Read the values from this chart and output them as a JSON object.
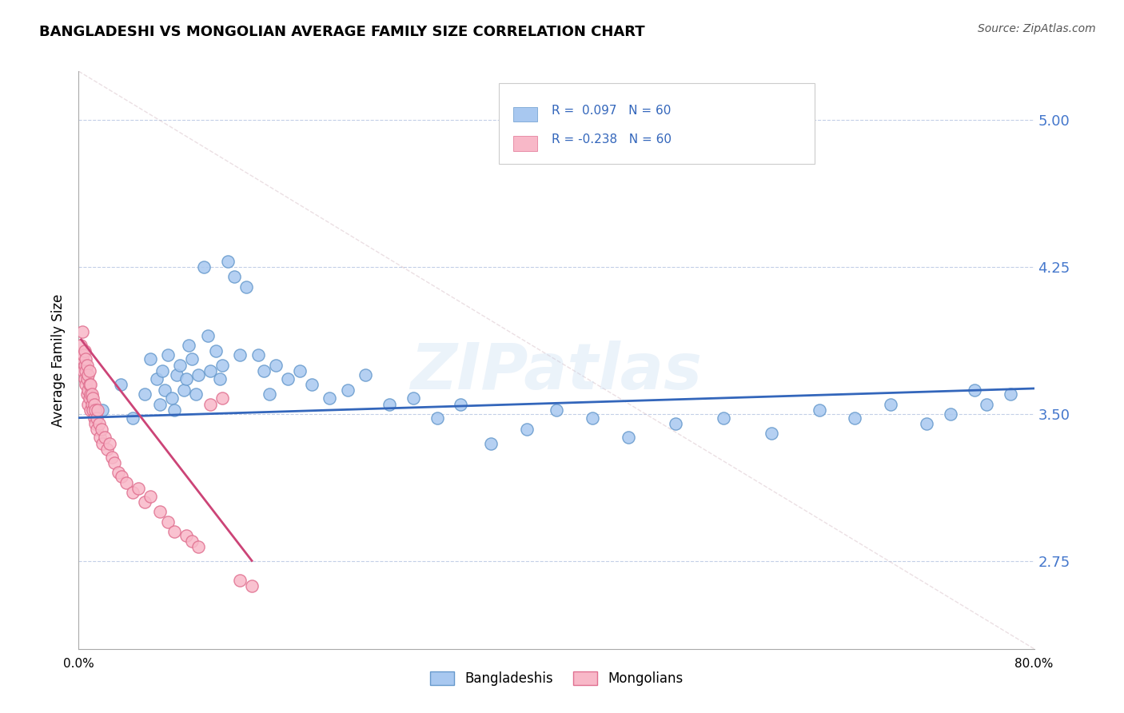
{
  "title": "BANGLADESHI VS MONGOLIAN AVERAGE FAMILY SIZE CORRELATION CHART",
  "source": "Source: ZipAtlas.com",
  "ylabel": "Average Family Size",
  "yticks": [
    2.75,
    3.5,
    4.25,
    5.0
  ],
  "xlim": [
    0.0,
    0.8
  ],
  "ylim": [
    2.3,
    5.25
  ],
  "legend_label1": "Bangladeshis",
  "legend_label2": "Mongolians",
  "color_bangladeshi_fill": "#A8C8F0",
  "color_bangladeshi_edge": "#6699CC",
  "color_mongolian_fill": "#F8B8C8",
  "color_mongolian_edge": "#E07090",
  "color_line_bangladeshi": "#3366BB",
  "color_line_mongolian": "#CC4477",
  "color_diag": "#D8C0C8",
  "watermark": "ZIPatlas",
  "bang_x": [
    0.02,
    0.035,
    0.045,
    0.055,
    0.06,
    0.065,
    0.068,
    0.07,
    0.072,
    0.075,
    0.078,
    0.08,
    0.082,
    0.085,
    0.088,
    0.09,
    0.092,
    0.095,
    0.098,
    0.1,
    0.105,
    0.108,
    0.11,
    0.115,
    0.118,
    0.12,
    0.125,
    0.13,
    0.135,
    0.14,
    0.15,
    0.155,
    0.16,
    0.165,
    0.175,
    0.185,
    0.195,
    0.21,
    0.225,
    0.24,
    0.26,
    0.28,
    0.3,
    0.32,
    0.345,
    0.375,
    0.4,
    0.43,
    0.46,
    0.5,
    0.54,
    0.58,
    0.62,
    0.65,
    0.68,
    0.71,
    0.73,
    0.75,
    0.76,
    0.78
  ],
  "bang_y": [
    3.52,
    3.65,
    3.48,
    3.6,
    3.78,
    3.68,
    3.55,
    3.72,
    3.62,
    3.8,
    3.58,
    3.52,
    3.7,
    3.75,
    3.62,
    3.68,
    3.85,
    3.78,
    3.6,
    3.7,
    4.25,
    3.9,
    3.72,
    3.82,
    3.68,
    3.75,
    4.28,
    4.2,
    3.8,
    4.15,
    3.8,
    3.72,
    3.6,
    3.75,
    3.68,
    3.72,
    3.65,
    3.58,
    3.62,
    3.7,
    3.55,
    3.58,
    3.48,
    3.55,
    3.35,
    3.42,
    3.52,
    3.48,
    3.38,
    3.45,
    3.48,
    3.4,
    3.52,
    3.48,
    3.55,
    3.45,
    3.5,
    3.62,
    3.55,
    3.6
  ],
  "mong_x": [
    0.002,
    0.003,
    0.003,
    0.004,
    0.004,
    0.005,
    0.005,
    0.005,
    0.006,
    0.006,
    0.006,
    0.007,
    0.007,
    0.007,
    0.008,
    0.008,
    0.008,
    0.009,
    0.009,
    0.009,
    0.01,
    0.01,
    0.01,
    0.011,
    0.011,
    0.012,
    0.012,
    0.013,
    0.013,
    0.014,
    0.014,
    0.015,
    0.015,
    0.016,
    0.017,
    0.018,
    0.019,
    0.02,
    0.022,
    0.024,
    0.026,
    0.028,
    0.03,
    0.033,
    0.036,
    0.04,
    0.045,
    0.05,
    0.055,
    0.06,
    0.068,
    0.075,
    0.08,
    0.09,
    0.095,
    0.1,
    0.11,
    0.12,
    0.135,
    0.145
  ],
  "mong_y": [
    3.85,
    3.78,
    3.92,
    3.72,
    3.8,
    3.68,
    3.75,
    3.82,
    3.65,
    3.72,
    3.78,
    3.6,
    3.68,
    3.75,
    3.62,
    3.7,
    3.55,
    3.58,
    3.65,
    3.72,
    3.52,
    3.6,
    3.65,
    3.55,
    3.6,
    3.52,
    3.58,
    3.48,
    3.55,
    3.45,
    3.52,
    3.42,
    3.48,
    3.52,
    3.45,
    3.38,
    3.42,
    3.35,
    3.38,
    3.32,
    3.35,
    3.28,
    3.25,
    3.2,
    3.18,
    3.15,
    3.1,
    3.12,
    3.05,
    3.08,
    3.0,
    2.95,
    2.9,
    2.88,
    2.85,
    2.82,
    3.55,
    3.58,
    2.65,
    2.62
  ]
}
